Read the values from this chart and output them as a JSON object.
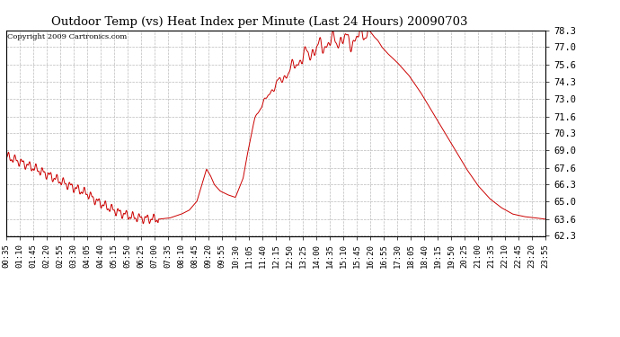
{
  "title": "Outdoor Temp (vs) Heat Index per Minute (Last 24 Hours) 20090703",
  "copyright": "Copyright 2009 Cartronics.com",
  "line_color": "#cc0000",
  "background_color": "#ffffff",
  "grid_color": "#bbbbbb",
  "ylim": [
    62.3,
    78.3
  ],
  "yticks": [
    62.3,
    63.6,
    65.0,
    66.3,
    67.6,
    69.0,
    70.3,
    71.6,
    73.0,
    74.3,
    75.6,
    77.0,
    78.3
  ],
  "xtick_labels": [
    "00:35",
    "01:10",
    "01:45",
    "02:20",
    "02:55",
    "03:30",
    "04:05",
    "04:40",
    "05:15",
    "05:50",
    "06:25",
    "07:00",
    "07:35",
    "08:10",
    "08:45",
    "09:20",
    "09:55",
    "10:30",
    "11:05",
    "11:40",
    "12:15",
    "12:50",
    "13:25",
    "14:00",
    "14:35",
    "15:10",
    "15:45",
    "16:20",
    "16:55",
    "17:30",
    "18:05",
    "18:40",
    "19:15",
    "19:50",
    "20:25",
    "21:00",
    "21:35",
    "22:10",
    "22:45",
    "23:20",
    "23:55"
  ],
  "key_points": {
    "t0_min": 35,
    "t0_val": 68.5,
    "t1_min": 60,
    "t1_val": 68.2,
    "t2_min": 90,
    "t2_val": 67.8,
    "t3_min": 120,
    "t3_val": 67.4,
    "t4_min": 160,
    "t4_val": 66.8,
    "t5_min": 200,
    "t5_val": 66.2,
    "t6_min": 245,
    "t6_val": 65.6,
    "t7_min": 270,
    "t7_val": 65.0,
    "t8_min": 300,
    "t8_val": 64.5,
    "t9_min": 330,
    "t9_val": 64.1,
    "t10_min": 360,
    "t10_val": 63.8,
    "t11_min": 390,
    "t11_val": 63.65,
    "t12_min": 430,
    "t12_val": 63.6,
    "t13_min": 460,
    "t13_val": 63.7,
    "t14_min": 490,
    "t14_val": 64.0,
    "t15_min": 510,
    "t15_val": 64.3,
    "t16_min": 530,
    "t16_val": 65.0,
    "t17_min": 545,
    "t17_val": 66.5,
    "t18_min": 555,
    "t18_val": 67.5,
    "t19_min": 565,
    "t19_val": 67.0,
    "t20_min": 575,
    "t20_val": 66.3,
    "t21_min": 590,
    "t21_val": 65.8,
    "t22_min": 610,
    "t22_val": 65.5,
    "t23_min": 630,
    "t23_val": 65.3,
    "t24_min": 650,
    "t24_val": 66.8,
    "t25_min": 660,
    "t25_val": 68.5,
    "t26_min": 670,
    "t26_val": 70.0,
    "t27_min": 680,
    "t27_val": 71.5,
    "t28_min": 700,
    "t28_val": 72.5,
    "t29_min": 720,
    "t29_val": 73.5,
    "t30_min": 740,
    "t30_val": 74.2,
    "t31_min": 760,
    "t31_val": 74.8,
    "t32_min": 775,
    "t32_val": 75.3,
    "t33_min": 790,
    "t33_val": 75.8,
    "t34_min": 810,
    "t34_val": 76.3,
    "t35_min": 830,
    "t35_val": 76.7,
    "t36_min": 850,
    "t36_val": 77.0,
    "t37_min": 870,
    "t37_val": 77.3,
    "t38_min": 890,
    "t38_val": 77.5,
    "t39_min": 910,
    "t39_val": 77.6,
    "t40_min": 930,
    "t40_val": 77.4,
    "t41_min": 945,
    "t41_val": 77.7,
    "t42_min": 960,
    "t42_val": 78.0,
    "t43_min": 975,
    "t43_val": 78.3,
    "t44_min": 980,
    "t44_val": 78.2,
    "t45_min": 990,
    "t45_val": 77.8,
    "t46_min": 1000,
    "t46_val": 77.5,
    "t47_min": 1010,
    "t47_val": 77.0,
    "t48_min": 1025,
    "t48_val": 76.5,
    "t49_min": 1050,
    "t49_val": 75.8,
    "t50_min": 1080,
    "t50_val": 74.8,
    "t51_min": 1110,
    "t51_val": 73.5,
    "t52_min": 1140,
    "t52_val": 72.0,
    "t53_min": 1170,
    "t53_val": 70.5,
    "t54_min": 1200,
    "t54_val": 69.0,
    "t55_min": 1230,
    "t55_val": 67.5,
    "t56_min": 1260,
    "t56_val": 66.2,
    "t57_min": 1290,
    "t57_val": 65.2,
    "t58_min": 1320,
    "t58_val": 64.5,
    "t59_min": 1350,
    "t59_val": 64.0,
    "t60_min": 1380,
    "t60_val": 63.8,
    "t61_min": 1410,
    "t61_val": 63.7,
    "t62_min": 1435,
    "t62_val": 63.6
  }
}
